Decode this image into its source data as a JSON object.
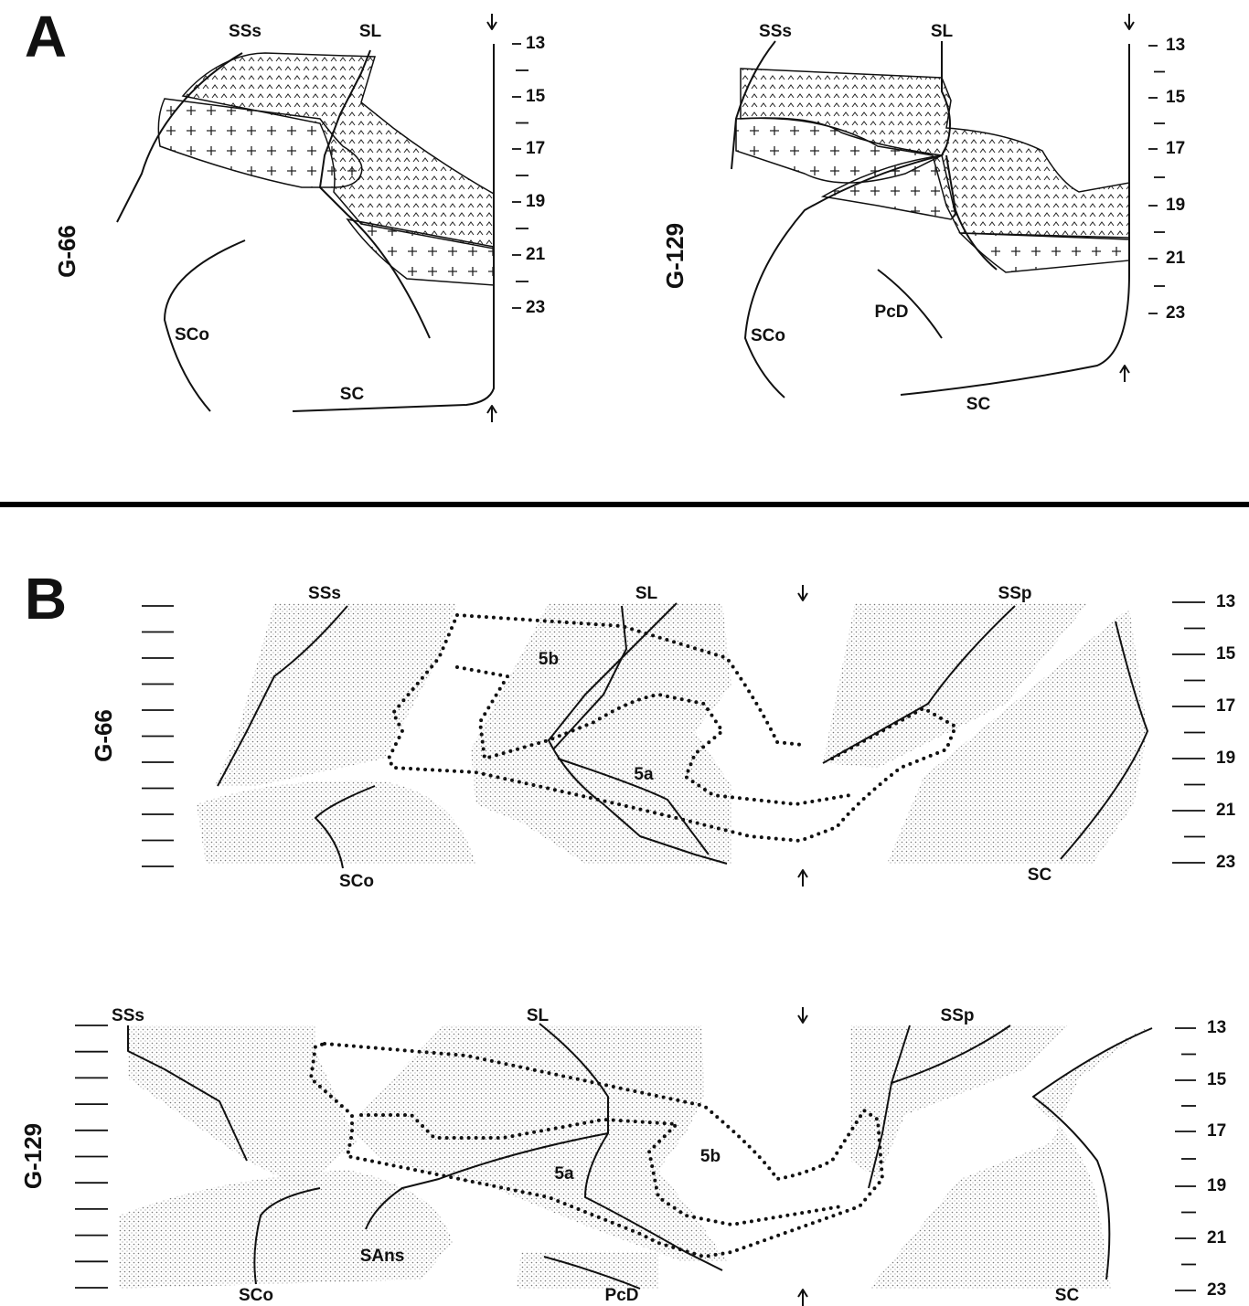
{
  "panel_a": {
    "label": "A",
    "maps": [
      {
        "id": "G-66",
        "labels": [
          "SSs",
          "SL",
          "SCo",
          "SC"
        ],
        "scale": [
          13,
          15,
          17,
          19,
          21,
          23
        ]
      },
      {
        "id": "G-129",
        "labels": [
          "SSs",
          "SL",
          "PcD",
          "SCo",
          "SC"
        ],
        "scale": [
          13,
          15,
          17,
          19,
          21,
          23
        ]
      }
    ]
  },
  "panel_b": {
    "label": "B",
    "maps": [
      {
        "id": "G-66",
        "labels": [
          "SSs",
          "SL",
          "SSp",
          "5b",
          "5a",
          "SCo",
          "SC"
        ],
        "scale": [
          13,
          15,
          17,
          19,
          21,
          23
        ]
      },
      {
        "id": "G-129",
        "labels": [
          "SSs",
          "SL",
          "SSp",
          "5a",
          "5b",
          "SAns",
          "SCo",
          "PcD",
          "SC"
        ],
        "scale": [
          13,
          15,
          17,
          19,
          21,
          23
        ]
      }
    ]
  }
}
